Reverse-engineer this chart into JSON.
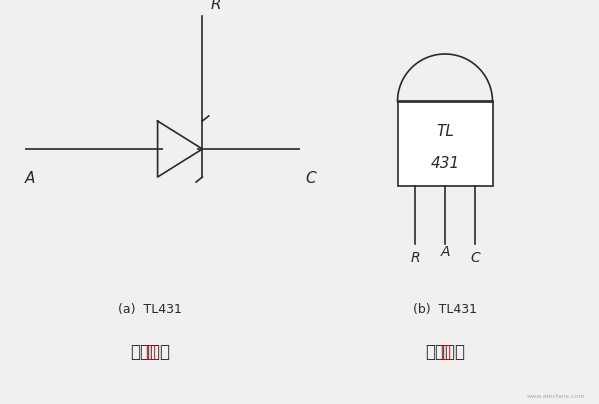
{
  "bg_color": "#f0f0f0",
  "line_color": "#2a2a2a",
  "text_color": "#2a2a2a",
  "red_color": "#cc0000",
  "fig_width": 5.99,
  "fig_height": 4.04,
  "dpi": 100,
  "watermark": "www.elecfans.com",
  "cap_a": "(a)  TL431",
  "cap_b": "(b)  TL431",
  "sub_a_black": "等效图",
  "sub_b_black": "引脚图",
  "sub_red": "的",
  "label_R_left": "R",
  "label_A_left": "A",
  "label_C_left": "C",
  "label_TL": "TL",
  "label_431": "431",
  "label_R_right": "R",
  "label_A_right": "A",
  "label_C_right": "C"
}
